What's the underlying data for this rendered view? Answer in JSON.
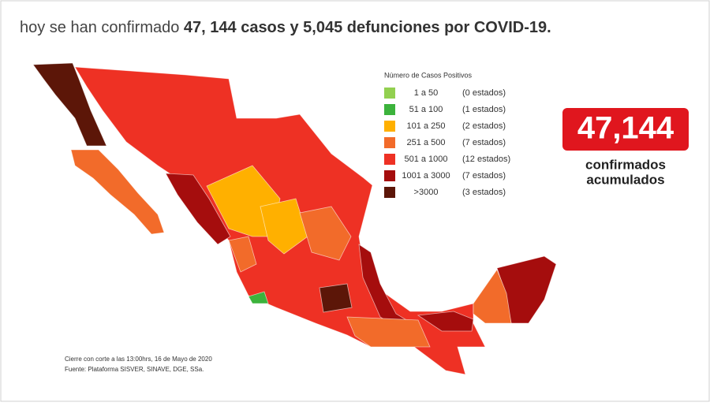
{
  "header": {
    "lead": "hoy se han confirmado",
    "emphasis": "47, 144 casos y 5,045 defunciones por COVID-19."
  },
  "legend": {
    "title": "Número de Casos Positivos",
    "items": [
      {
        "range": "1 a 50",
        "count": "(0 estados)",
        "color": "#92d050"
      },
      {
        "range": "51 a 100",
        "count": "(1 estados)",
        "color": "#3cb33c"
      },
      {
        "range": "101 a 250",
        "count": "(2 estados)",
        "color": "#ffb000"
      },
      {
        "range": "251 a 500",
        "count": "(7 estados)",
        "color": "#f26b2a"
      },
      {
        "range": "501 a 1000",
        "count": "(12 estados)",
        "color": "#ee3124"
      },
      {
        "range": "1001 a 3000",
        "count": "(7 estados)",
        "color": "#a50d0d"
      },
      {
        "range": ">3000",
        "count": "(3 estados)",
        "color": "#5c1608"
      }
    ]
  },
  "summary": {
    "total": "47,144",
    "line1": "confirmados",
    "line2": "acumulados"
  },
  "footnote": {
    "line1": "Cierre con corte a las 13:00hrs, 16 de Mayo de 2020",
    "line2": "Fuente: Plataforma SISVER, SINAVE, DGE, SSa."
  }
}
